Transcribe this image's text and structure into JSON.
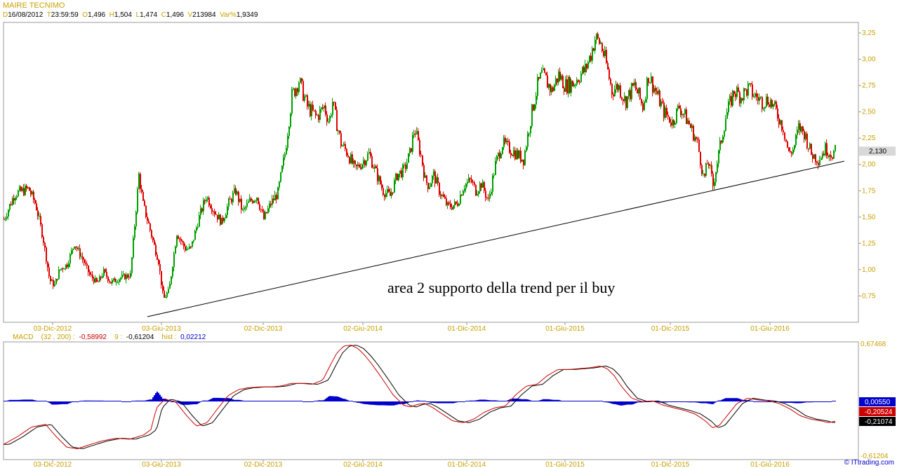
{
  "header": {
    "title": "MAIRE TECNIMO",
    "quote": [
      {
        "k": "D",
        "v": "16/08/2012"
      },
      {
        "k": "T",
        "v": "23:59:59"
      },
      {
        "k": "O",
        "v": "1,496"
      },
      {
        "k": "H",
        "v": "1,504"
      },
      {
        "k": "L",
        "v": "1,474"
      },
      {
        "k": "C",
        "v": "1,496"
      },
      {
        "k": "V",
        "v": "213984"
      },
      {
        "k": "Var%",
        "v": "1,9349"
      }
    ]
  },
  "macd_legend": {
    "name": "MACD",
    "params": "(32 , 200) :",
    "macd_value": "-0,58992",
    "signal_label": "9 :",
    "signal_value": "-0,61204",
    "hist_label": "hist :",
    "hist_value": "0,02212"
  },
  "credit": "© ITtrading.com",
  "colors": {
    "up": "#00a000",
    "down": "#e00000",
    "axis": "#c8a000",
    "macd": "#cc0000",
    "signal": "#000000",
    "hist": "#0000cc"
  },
  "chart_data": [
    {
      "type": "line",
      "name": "price",
      "x_ticks": [
        "03-Dic-2012",
        "03-Giu-2013",
        "02-Dic-2013",
        "02-Giu-2014",
        "01-Dic-2014",
        "01-Giu-2015",
        "01-Dic-2015",
        "01-Giu-2016"
      ],
      "y_ticks": [
        "0,75",
        "1,00",
        "1,25",
        "1,50",
        "1,75",
        "2,00",
        "2,25",
        "2,50",
        "2,75",
        "3,00",
        "3,25"
      ],
      "ylim": [
        0.5,
        3.35
      ],
      "last_value_label": "2,130",
      "x_index": [
        0,
        15,
        35,
        45,
        55,
        65,
        72,
        79,
        90,
        100,
        112,
        122,
        133,
        142,
        152,
        165,
        180,
        192,
        198,
        206,
        213,
        220,
        227,
        235,
        246,
        258,
        266,
        278,
        288,
        300,
        310,
        320,
        330,
        340,
        350,
        360,
        370,
        380,
        390,
        400,
        410,
        420,
        432,
        445,
        456,
        463,
        468,
        472,
        480,
        490,
        500,
        510,
        520,
        530,
        540,
        550,
        560,
        570,
        578,
        585,
        595,
        600,
        605,
        612,
        620,
        632,
        645,
        655,
        665,
        672,
        680,
        690,
        700,
        710,
        720,
        730,
        740,
        752,
        760,
        766,
        772,
        780,
        790,
        800,
        812,
        820,
        828,
        836,
        842,
        850,
        858,
        866,
        875,
        885,
        898,
        910,
        918,
        928,
        940,
        952,
        962,
        975,
        988,
        997,
        1003,
        1010,
        1018,
        1028,
        1040,
        1050,
        1060,
        1070,
        1080,
        1090,
        1100,
        1110,
        1118,
        1125,
        1132,
        1140,
        1150,
        1160,
        1170,
        1180,
        1185
      ],
      "close": [
        1.48,
        1.72,
        1.77,
        1.62,
        1.32,
        0.9,
        0.85,
        1.0,
        1.05,
        1.25,
        1.1,
        0.95,
        0.87,
        0.98,
        0.88,
        0.92,
        0.95,
        1.9,
        1.62,
        1.43,
        1.25,
        1.08,
        0.72,
        0.8,
        1.35,
        1.2,
        1.2,
        1.5,
        1.7,
        1.55,
        1.45,
        1.63,
        1.75,
        1.55,
        1.65,
        1.7,
        1.48,
        1.63,
        1.73,
        2.1,
        2.65,
        2.8,
        2.55,
        2.45,
        2.55,
        2.4,
        2.6,
        2.45,
        2.2,
        2.1,
        1.95,
        2.02,
        2.1,
        1.92,
        1.75,
        1.7,
        1.9,
        1.95,
        2.1,
        2.35,
        2.05,
        1.85,
        1.8,
        1.9,
        1.75,
        1.6,
        1.62,
        1.8,
        1.85,
        1.75,
        1.82,
        1.65,
        2.0,
        2.2,
        2.15,
        2.1,
        2.05,
        2.5,
        2.75,
        2.85,
        2.8,
        2.7,
        2.85,
        2.75,
        2.78,
        2.85,
        2.9,
        3.05,
        3.2,
        3.15,
        2.95,
        2.7,
        2.75,
        2.6,
        2.75,
        2.55,
        2.85,
        2.7,
        2.5,
        2.4,
        2.55,
        2.4,
        2.2,
        1.85,
        2.05,
        1.8,
        2.1,
        2.45,
        2.7,
        2.65,
        2.72,
        2.65,
        2.6,
        2.62,
        2.5,
        2.35,
        2.1,
        2.15,
        2.35,
        2.3,
        2.1,
        2.05,
        2.15,
        2.1,
        2.13
      ]
    },
    {
      "type": "line",
      "name": "MACD",
      "x_ticks": [
        "03-Dic-2012",
        "03-Giu-2013",
        "02-Dic-2013",
        "02-Giu-2014",
        "01-Dic-2014",
        "01-Giu-2015",
        "01-Dic-2015",
        "01-Giu-2016"
      ],
      "y_ticks": [
        "0,67468",
        "-0,61204"
      ],
      "ylim": [
        -0.61204,
        0.67468
      ],
      "last_value_labels": [
        "0,00550",
        "-0,20524",
        "-0,21074"
      ],
      "x_index": [
        0,
        20,
        40,
        60,
        75,
        90,
        105,
        120,
        140,
        160,
        180,
        200,
        210,
        218,
        230,
        245,
        262,
        275,
        290,
        305,
        320,
        335,
        348,
        365,
        380,
        395,
        410,
        425,
        440,
        455,
        465,
        475,
        485,
        495,
        505,
        515,
        525,
        540,
        555,
        570,
        580,
        590,
        600,
        610,
        625,
        640,
        655,
        670,
        685,
        700,
        715,
        730,
        745,
        760,
        775,
        790,
        805,
        820,
        835,
        850,
        860,
        870,
        880,
        895,
        910,
        925,
        940,
        955,
        970,
        985,
        1000,
        1010,
        1020,
        1030,
        1045,
        1060,
        1075,
        1090,
        1105,
        1120,
        1135,
        1150,
        1165,
        1175,
        1185
      ],
      "macd": [
        -0.47,
        -0.38,
        -0.27,
        -0.24,
        -0.38,
        -0.5,
        -0.52,
        -0.48,
        -0.43,
        -0.4,
        -0.41,
        -0.36,
        -0.3,
        -0.05,
        0.05,
        0.02,
        -0.15,
        -0.26,
        -0.22,
        -0.06,
        0.09,
        0.16,
        0.18,
        0.19,
        0.19,
        0.2,
        0.23,
        0.23,
        0.22,
        0.27,
        0.43,
        0.58,
        0.66,
        0.67,
        0.63,
        0.55,
        0.45,
        0.28,
        0.1,
        -0.02,
        -0.04,
        -0.01,
        0.0,
        -0.04,
        -0.12,
        -0.2,
        -0.22,
        -0.18,
        -0.1,
        -0.05,
        -0.03,
        0.1,
        0.2,
        0.22,
        0.32,
        0.39,
        0.39,
        0.4,
        0.41,
        0.43,
        0.4,
        0.32,
        0.2,
        0.06,
        0.02,
        0.03,
        -0.02,
        -0.05,
        -0.08,
        -0.12,
        -0.2,
        -0.28,
        -0.25,
        -0.15,
        0.0,
        0.06,
        0.04,
        0.03,
        0.0,
        -0.06,
        -0.14,
        -0.18,
        -0.2,
        -0.22,
        -0.205
      ]
    }
  ]
}
